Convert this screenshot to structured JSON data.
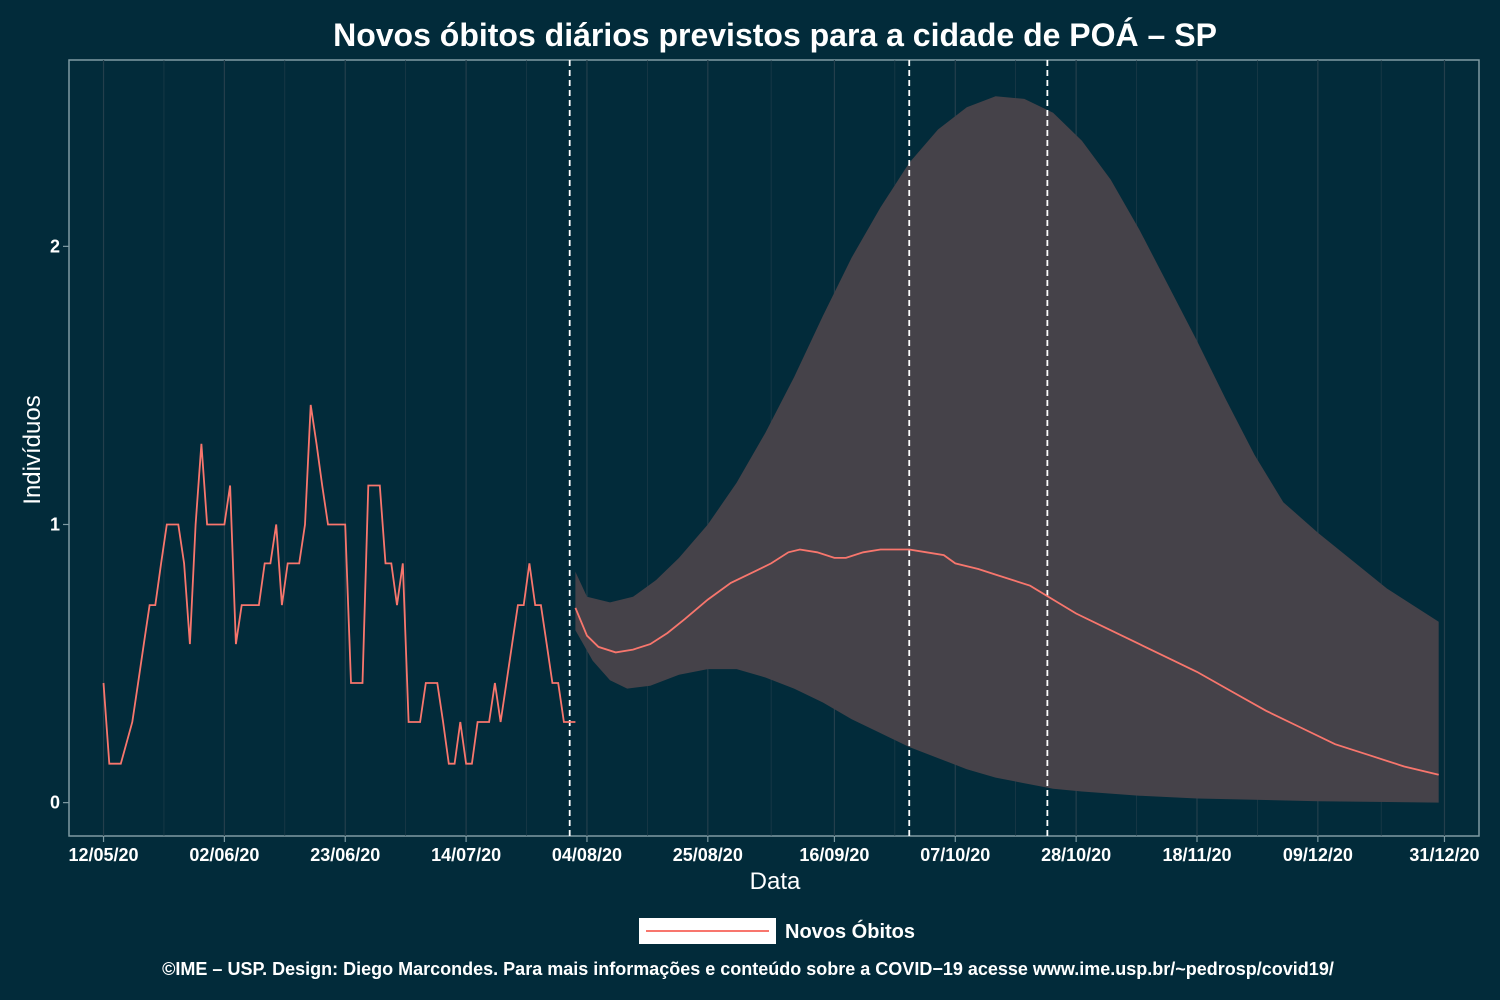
{
  "chart_data": {
    "type": "line",
    "title": "Novos óbitos diários previstos para a cidade de POÁ – SP",
    "xlabel": "Data",
    "ylabel": "Indivíduos",
    "x_type": "date",
    "xlim": [
      "2020-05-06",
      "2021-01-06"
    ],
    "ylim": [
      -0.12,
      2.67
    ],
    "x_ticks": [
      {
        "date": "2020-05-12",
        "label": "12/05/20"
      },
      {
        "date": "2020-06-02",
        "label": "02/06/20"
      },
      {
        "date": "2020-06-23",
        "label": "23/06/20"
      },
      {
        "date": "2020-07-14",
        "label": "14/07/20"
      },
      {
        "date": "2020-08-04",
        "label": "04/08/20"
      },
      {
        "date": "2020-08-25",
        "label": "25/08/20"
      },
      {
        "date": "2020-09-16",
        "label": "16/09/20"
      },
      {
        "date": "2020-10-07",
        "label": "07/10/20"
      },
      {
        "date": "2020-10-28",
        "label": "28/10/20"
      },
      {
        "date": "2020-11-18",
        "label": "18/11/20"
      },
      {
        "date": "2020-12-09",
        "label": "09/12/20"
      },
      {
        "date": "2020-12-31",
        "label": "31/12/20"
      }
    ],
    "y_ticks": [
      {
        "value": 0,
        "label": "0"
      },
      {
        "value": 1,
        "label": "1"
      },
      {
        "value": 2,
        "label": "2"
      }
    ],
    "grid": true,
    "legend_position": "bottom",
    "vlines": [
      "2020-08-01",
      "2020-09-29",
      "2020-10-23"
    ],
    "series": [
      {
        "name": "Novos Óbitos",
        "color": "#f8766d",
        "observed": [
          [
            "2020-05-12",
            0.43
          ],
          [
            "2020-05-13",
            0.14
          ],
          [
            "2020-05-15",
            0.14
          ],
          [
            "2020-05-17",
            0.29
          ],
          [
            "2020-05-18",
            0.43
          ],
          [
            "2020-05-19",
            0.57
          ],
          [
            "2020-05-20",
            0.71
          ],
          [
            "2020-05-21",
            0.71
          ],
          [
            "2020-05-22",
            0.86
          ],
          [
            "2020-05-23",
            1.0
          ],
          [
            "2020-05-25",
            1.0
          ],
          [
            "2020-05-26",
            0.86
          ],
          [
            "2020-05-27",
            0.57
          ],
          [
            "2020-05-28",
            1.0
          ],
          [
            "2020-05-29",
            1.29
          ],
          [
            "2020-05-30",
            1.0
          ],
          [
            "2020-06-01",
            1.0
          ],
          [
            "2020-06-02",
            1.0
          ],
          [
            "2020-06-03",
            1.14
          ],
          [
            "2020-06-04",
            0.57
          ],
          [
            "2020-06-05",
            0.71
          ],
          [
            "2020-06-08",
            0.71
          ],
          [
            "2020-06-09",
            0.86
          ],
          [
            "2020-06-10",
            0.86
          ],
          [
            "2020-06-11",
            1.0
          ],
          [
            "2020-06-12",
            0.71
          ],
          [
            "2020-06-13",
            0.86
          ],
          [
            "2020-06-15",
            0.86
          ],
          [
            "2020-06-16",
            1.0
          ],
          [
            "2020-06-17",
            1.43
          ],
          [
            "2020-06-18",
            1.29
          ],
          [
            "2020-06-19",
            1.14
          ],
          [
            "2020-06-20",
            1.0
          ],
          [
            "2020-06-22",
            1.0
          ],
          [
            "2020-06-23",
            1.0
          ],
          [
            "2020-06-24",
            0.43
          ],
          [
            "2020-06-26",
            0.43
          ],
          [
            "2020-06-27",
            1.14
          ],
          [
            "2020-06-29",
            1.14
          ],
          [
            "2020-06-30",
            0.86
          ],
          [
            "2020-07-01",
            0.86
          ],
          [
            "2020-07-02",
            0.71
          ],
          [
            "2020-07-03",
            0.86
          ],
          [
            "2020-07-04",
            0.29
          ],
          [
            "2020-07-06",
            0.29
          ],
          [
            "2020-07-07",
            0.43
          ],
          [
            "2020-07-09",
            0.43
          ],
          [
            "2020-07-10",
            0.29
          ],
          [
            "2020-07-11",
            0.14
          ],
          [
            "2020-07-12",
            0.14
          ],
          [
            "2020-07-13",
            0.29
          ],
          [
            "2020-07-14",
            0.14
          ],
          [
            "2020-07-15",
            0.14
          ],
          [
            "2020-07-16",
            0.29
          ],
          [
            "2020-07-18",
            0.29
          ],
          [
            "2020-07-19",
            0.43
          ],
          [
            "2020-07-20",
            0.29
          ],
          [
            "2020-07-21",
            0.43
          ],
          [
            "2020-07-22",
            0.57
          ],
          [
            "2020-07-23",
            0.71
          ],
          [
            "2020-07-24",
            0.71
          ],
          [
            "2020-07-25",
            0.86
          ],
          [
            "2020-07-26",
            0.71
          ],
          [
            "2020-07-27",
            0.71
          ],
          [
            "2020-07-28",
            0.57
          ],
          [
            "2020-07-29",
            0.43
          ],
          [
            "2020-07-30",
            0.43
          ],
          [
            "2020-07-31",
            0.29
          ],
          [
            "2020-08-02",
            0.29
          ]
        ],
        "forecast": [
          [
            "2020-08-02",
            0.7
          ],
          [
            "2020-08-04",
            0.6
          ],
          [
            "2020-08-06",
            0.56
          ],
          [
            "2020-08-09",
            0.54
          ],
          [
            "2020-08-12",
            0.55
          ],
          [
            "2020-08-15",
            0.57
          ],
          [
            "2020-08-18",
            0.61
          ],
          [
            "2020-08-21",
            0.66
          ],
          [
            "2020-08-25",
            0.73
          ],
          [
            "2020-08-29",
            0.79
          ],
          [
            "2020-09-02",
            0.83
          ],
          [
            "2020-09-05",
            0.86
          ],
          [
            "2020-09-08",
            0.9
          ],
          [
            "2020-09-10",
            0.91
          ],
          [
            "2020-09-13",
            0.9
          ],
          [
            "2020-09-16",
            0.88
          ],
          [
            "2020-09-18",
            0.88
          ],
          [
            "2020-09-21",
            0.9
          ],
          [
            "2020-09-24",
            0.91
          ],
          [
            "2020-09-29",
            0.91
          ],
          [
            "2020-10-02",
            0.9
          ],
          [
            "2020-10-05",
            0.89
          ],
          [
            "2020-10-07",
            0.86
          ],
          [
            "2020-10-11",
            0.84
          ],
          [
            "2020-10-14",
            0.82
          ],
          [
            "2020-10-20",
            0.78
          ],
          [
            "2020-10-24",
            0.73
          ],
          [
            "2020-10-28",
            0.68
          ],
          [
            "2020-11-02",
            0.63
          ],
          [
            "2020-11-08",
            0.57
          ],
          [
            "2020-11-14",
            0.51
          ],
          [
            "2020-11-18",
            0.47
          ],
          [
            "2020-11-24",
            0.4
          ],
          [
            "2020-11-30",
            0.33
          ],
          [
            "2020-12-06",
            0.27
          ],
          [
            "2020-12-12",
            0.21
          ],
          [
            "2020-12-18",
            0.17
          ],
          [
            "2020-12-24",
            0.13
          ],
          [
            "2020-12-30",
            0.1
          ]
        ]
      }
    ],
    "ribbon": {
      "upper": [
        [
          "2020-08-02",
          0.83
        ],
        [
          "2020-08-04",
          0.74
        ],
        [
          "2020-08-08",
          0.72
        ],
        [
          "2020-08-12",
          0.74
        ],
        [
          "2020-08-16",
          0.8
        ],
        [
          "2020-08-20",
          0.88
        ],
        [
          "2020-08-25",
          1.0
        ],
        [
          "2020-08-30",
          1.15
        ],
        [
          "2020-09-04",
          1.33
        ],
        [
          "2020-09-09",
          1.53
        ],
        [
          "2020-09-14",
          1.75
        ],
        [
          "2020-09-19",
          1.96
        ],
        [
          "2020-09-24",
          2.14
        ],
        [
          "2020-09-29",
          2.3
        ],
        [
          "2020-10-04",
          2.42
        ],
        [
          "2020-10-09",
          2.5
        ],
        [
          "2020-10-14",
          2.54
        ],
        [
          "2020-10-19",
          2.53
        ],
        [
          "2020-10-24",
          2.48
        ],
        [
          "2020-10-29",
          2.38
        ],
        [
          "2020-11-03",
          2.24
        ],
        [
          "2020-11-08",
          2.06
        ],
        [
          "2020-11-13",
          1.86
        ],
        [
          "2020-11-18",
          1.66
        ],
        [
          "2020-11-23",
          1.45
        ],
        [
          "2020-11-28",
          1.25
        ],
        [
          "2020-12-03",
          1.08
        ],
        [
          "2020-12-09",
          0.97
        ],
        [
          "2020-12-15",
          0.87
        ],
        [
          "2020-12-21",
          0.77
        ],
        [
          "2020-12-30",
          0.65
        ]
      ],
      "lower": [
        [
          "2020-08-02",
          0.62
        ],
        [
          "2020-08-05",
          0.51
        ],
        [
          "2020-08-08",
          0.44
        ],
        [
          "2020-08-11",
          0.41
        ],
        [
          "2020-08-15",
          0.42
        ],
        [
          "2020-08-20",
          0.46
        ],
        [
          "2020-08-25",
          0.48
        ],
        [
          "2020-08-30",
          0.48
        ],
        [
          "2020-09-04",
          0.45
        ],
        [
          "2020-09-09",
          0.41
        ],
        [
          "2020-09-14",
          0.36
        ],
        [
          "2020-09-19",
          0.3
        ],
        [
          "2020-09-24",
          0.25
        ],
        [
          "2020-09-29",
          0.2
        ],
        [
          "2020-10-04",
          0.16
        ],
        [
          "2020-10-09",
          0.12
        ],
        [
          "2020-10-14",
          0.09
        ],
        [
          "2020-10-19",
          0.07
        ],
        [
          "2020-10-24",
          0.05
        ],
        [
          "2020-10-29",
          0.04
        ],
        [
          "2020-11-08",
          0.025
        ],
        [
          "2020-11-18",
          0.015
        ],
        [
          "2020-11-28",
          0.01
        ],
        [
          "2020-12-09",
          0.005
        ],
        [
          "2020-12-30",
          0.0
        ]
      ],
      "color": "#454249"
    }
  },
  "colors": {
    "background": "#022b3a",
    "series": "#f8766d",
    "ribbon": "#454249",
    "grid": "#243f4c",
    "axis": "#7f9ba3",
    "vline": "#ffffff"
  },
  "legend": {
    "label": "Novos Óbitos"
  },
  "caption": "©IME – USP. Design: Diego Marcondes. Para mais informações e conteúdo sobre a COVID−19 acesse www.ime.usp.br/~pedrosp/covid19/"
}
